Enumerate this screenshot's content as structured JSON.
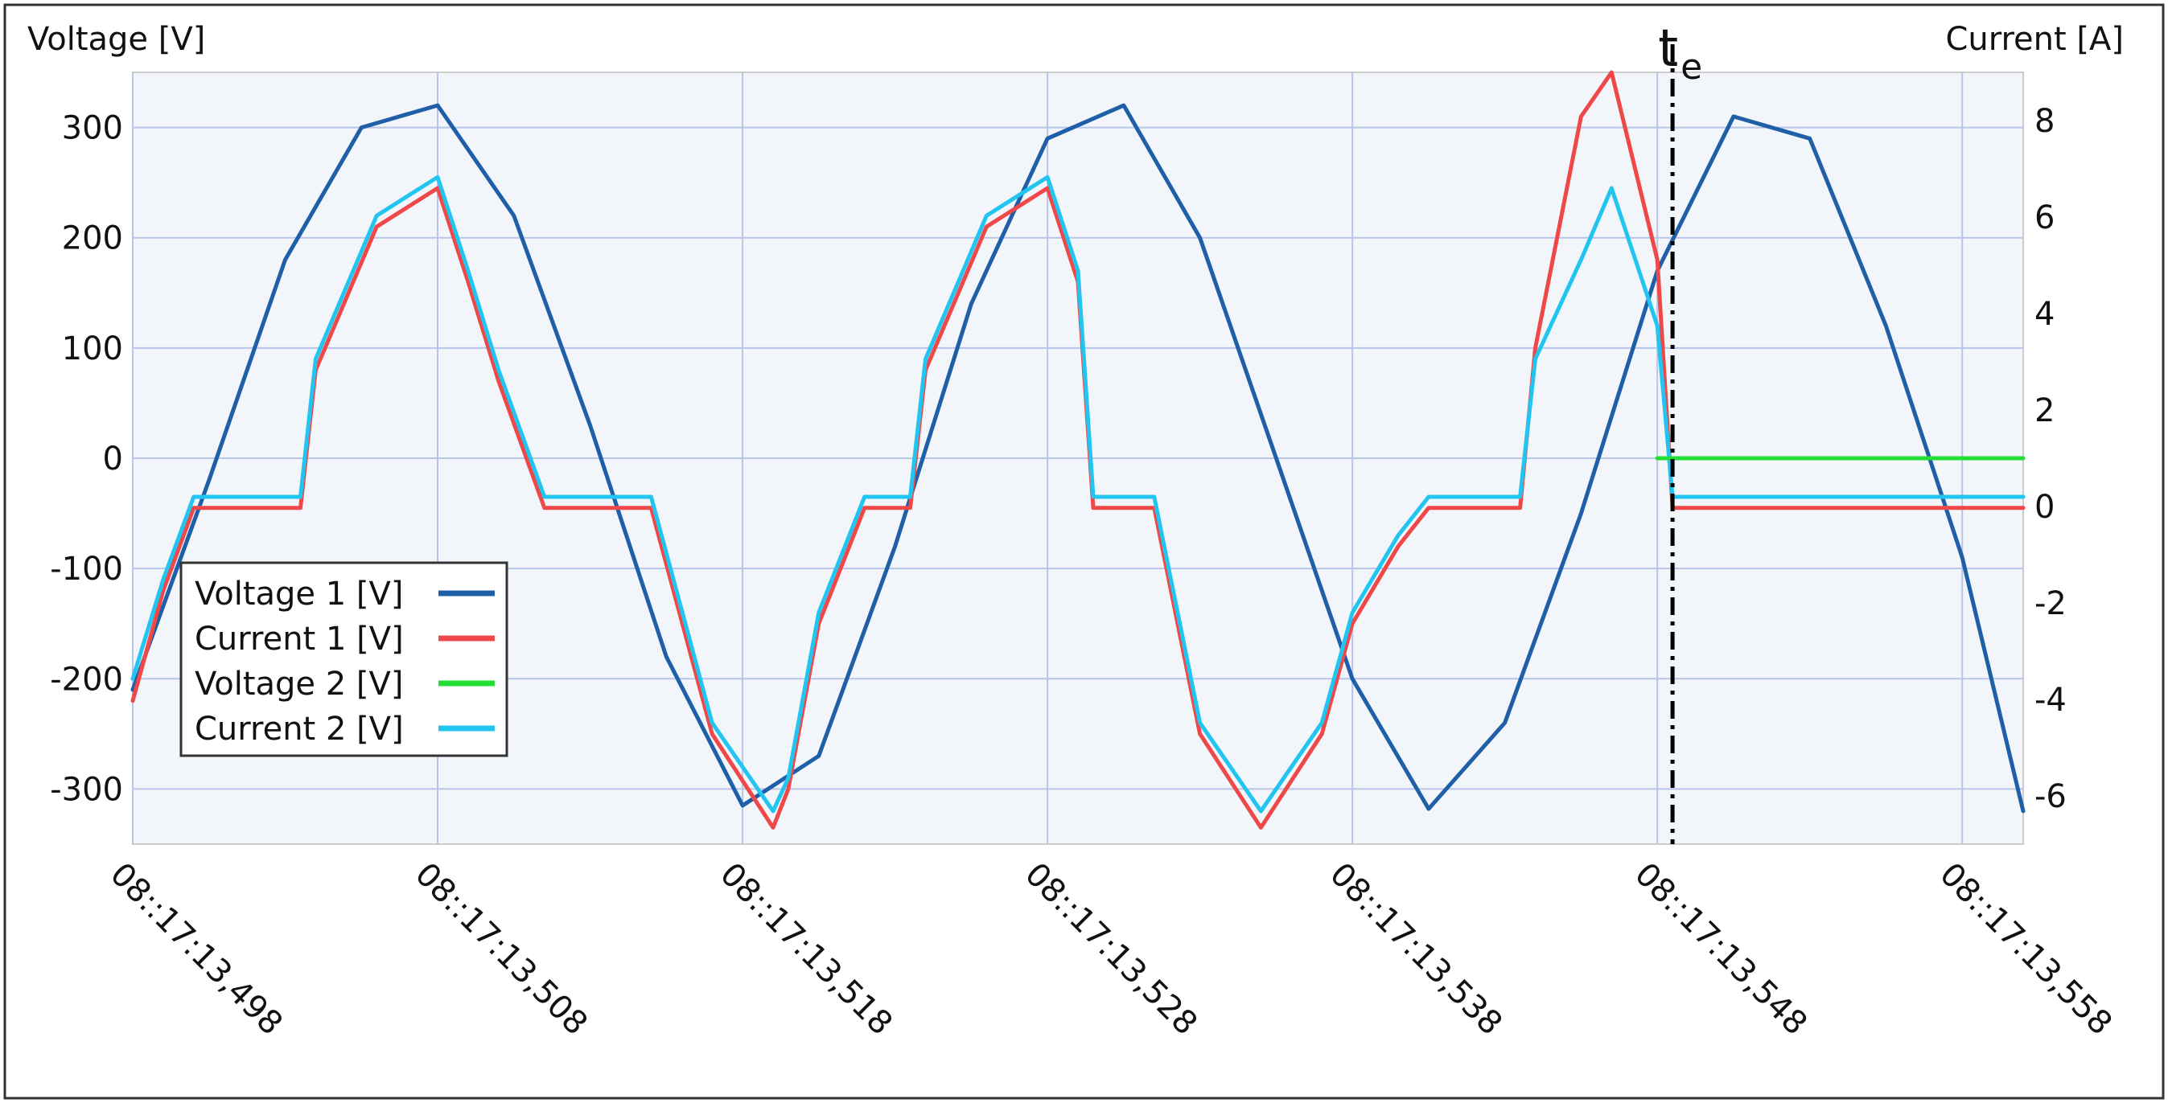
{
  "chart_data": {
    "type": "line",
    "y_left_label": "Voltage [V]",
    "y_right_label": "Current [A]",
    "y_left_ticks": [
      300,
      200,
      100,
      0,
      -100,
      -200,
      -300
    ],
    "y_right_ticks": [
      8,
      6,
      4,
      2,
      0,
      -2,
      -4,
      -6
    ],
    "y_left_range": [
      -350,
      350
    ],
    "y_right_range": [
      -7,
      9
    ],
    "x_range_ms": [
      13.498,
      13.56
    ],
    "x_tick_labels": [
      "08::17:13,498",
      "08::17:13,508",
      "08::17:13,518",
      "08::17:13,528",
      "08::17:13,538",
      "08::17:13,548",
      "08::17:13,558"
    ],
    "x_tick_values_ms": [
      13.498,
      13.508,
      13.518,
      13.528,
      13.538,
      13.548,
      13.558
    ],
    "event_marker": {
      "label": "t",
      "subscript": "e",
      "x_ms": 13.5485
    },
    "grid": true,
    "legend_position": "left-middle",
    "series": [
      {
        "name": "Voltage 1 [V]",
        "color": "#1f5fa8",
        "axis": "left",
        "x": [
          13.498,
          13.5005,
          13.503,
          13.5055,
          13.508,
          13.5105,
          13.513,
          13.5155,
          13.518,
          13.5205,
          13.523,
          13.5255,
          13.528,
          13.5305,
          13.533,
          13.5355,
          13.538,
          13.5405,
          13.543,
          13.5455,
          13.548,
          13.5505,
          13.553,
          13.5555,
          13.558,
          13.56
        ],
        "values": [
          -210,
          -20,
          180,
          300,
          320,
          220,
          30,
          -180,
          -315,
          -270,
          -80,
          140,
          290,
          320,
          200,
          0,
          -200,
          -318,
          -240,
          -50,
          170,
          310,
          290,
          120,
          -90,
          -320
        ]
      },
      {
        "name": "Current 1 [V]",
        "color": "#f04848",
        "axis": "left",
        "x": [
          13.498,
          13.499,
          13.5,
          13.5005,
          13.502,
          13.5035,
          13.504,
          13.506,
          13.508,
          13.509,
          13.51,
          13.5115,
          13.513,
          13.515,
          13.517,
          13.519,
          13.5195,
          13.5205,
          13.522,
          13.5235,
          13.524,
          13.526,
          13.528,
          13.529,
          13.5295,
          13.5315,
          13.533,
          13.535,
          13.537,
          13.538,
          13.5395,
          13.5405,
          13.542,
          13.5435,
          13.544,
          13.5455,
          13.5465,
          13.548,
          13.5485,
          13.55,
          13.555,
          13.56
        ],
        "values": [
          -220,
          -120,
          -45,
          -45,
          -45,
          -45,
          80,
          210,
          245,
          160,
          70,
          -45,
          -45,
          -45,
          -250,
          -335,
          -300,
          -150,
          -45,
          -45,
          80,
          210,
          245,
          160,
          -45,
          -45,
          -250,
          -335,
          -250,
          -150,
          -80,
          -45,
          -45,
          -45,
          100,
          310,
          350,
          180,
          -45,
          -45,
          -45,
          -45
        ]
      },
      {
        "name": "Voltage 2 [V]",
        "color": "#22dd33",
        "axis": "left",
        "x": [
          13.548,
          13.5485,
          13.55,
          13.555,
          13.56
        ],
        "values": [
          0,
          0,
          0,
          0,
          0
        ]
      },
      {
        "name": "Current 2 [V]",
        "color": "#22c4f0",
        "axis": "left",
        "x": [
          13.498,
          13.499,
          13.5,
          13.5005,
          13.502,
          13.5035,
          13.504,
          13.506,
          13.508,
          13.509,
          13.51,
          13.5115,
          13.513,
          13.515,
          13.517,
          13.519,
          13.5195,
          13.5205,
          13.522,
          13.5235,
          13.524,
          13.526,
          13.528,
          13.529,
          13.5295,
          13.5315,
          13.533,
          13.535,
          13.537,
          13.538,
          13.5395,
          13.5405,
          13.542,
          13.5435,
          13.544,
          13.5455,
          13.5465,
          13.548,
          13.5485,
          13.55,
          13.555,
          13.56
        ],
        "values": [
          -200,
          -110,
          -35,
          -35,
          -35,
          -35,
          90,
          220,
          255,
          170,
          80,
          -35,
          -35,
          -35,
          -240,
          -320,
          -290,
          -140,
          -35,
          -35,
          90,
          220,
          255,
          170,
          -35,
          -35,
          -240,
          -320,
          -240,
          -140,
          -70,
          -35,
          -35,
          -35,
          90,
          180,
          245,
          120,
          -35,
          -35,
          -35,
          -35
        ]
      }
    ]
  }
}
